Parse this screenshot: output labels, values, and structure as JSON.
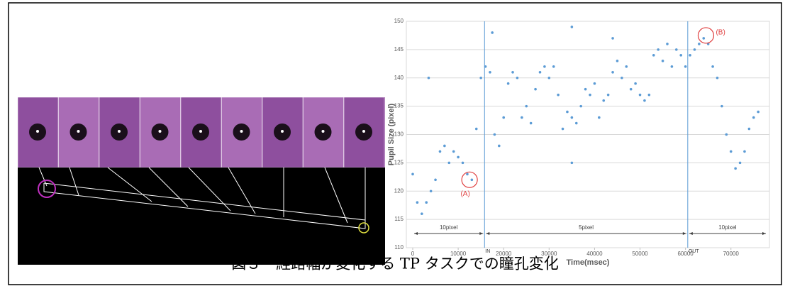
{
  "chart_data": {
    "type": "scatter",
    "y_label": "Pupil Size (pixel)",
    "x_label": "Time(msec)",
    "color": "#5b9bd5",
    "x": [
      0,
      1000,
      2000,
      3000,
      4000,
      5000,
      6000,
      7000,
      8000,
      9000,
      10000,
      11000,
      12000,
      13000,
      14000,
      15000,
      16000,
      17000,
      18000,
      19000,
      20000,
      21000,
      22000,
      23000,
      24000,
      25000,
      26000,
      27000,
      28000,
      29000,
      30000,
      31000,
      32000,
      33000,
      34000,
      35000,
      36000,
      37000,
      38000,
      39000,
      40000,
      41000,
      42000,
      43000,
      44000,
      45000,
      46000,
      47000,
      48000,
      49000,
      50000,
      51000,
      52000,
      53000,
      54000,
      55000,
      56000,
      57000,
      58000,
      59000,
      60000,
      61000,
      62000,
      63000,
      64000,
      65000,
      66000,
      67000,
      68000,
      69000,
      70000,
      71000,
      72000,
      73000,
      74000,
      75000,
      76000,
      3500,
      17500,
      35000,
      35000,
      44000
    ],
    "values": [
      123,
      118,
      116,
      118,
      120,
      122,
      127,
      128,
      125,
      127,
      126,
      125,
      123,
      122,
      131,
      140,
      142,
      141,
      130,
      128,
      133,
      139,
      141,
      140,
      133,
      135,
      132,
      138,
      141,
      142,
      140,
      142,
      137,
      131,
      134,
      133,
      132,
      135,
      138,
      137,
      139,
      133,
      136,
      137,
      141,
      143,
      140,
      142,
      138,
      139,
      137,
      136,
      137,
      144,
      145,
      143,
      146,
      142,
      145,
      144,
      142,
      144,
      145,
      146,
      147,
      146,
      142,
      140,
      135,
      130,
      127,
      124,
      125,
      127,
      131,
      133,
      134,
      140,
      148,
      149,
      125,
      147
    ],
    "xlim": [
      0,
      78000
    ],
    "ylim": [
      110,
      150
    ],
    "xticks": [
      0,
      10000,
      20000,
      30000,
      40000,
      50000,
      60000,
      70000
    ],
    "yticks": [
      110,
      115,
      120,
      125,
      130,
      135,
      140,
      145,
      150
    ],
    "grid": true,
    "markers": [
      {
        "label": "IN",
        "x": 15800
      },
      {
        "label": "OUT",
        "x": 60500
      }
    ],
    "segments": [
      {
        "label": "10pixel",
        "start": 0,
        "end": 15800
      },
      {
        "label": "5pixel",
        "start": 15800,
        "end": 60500
      },
      {
        "label": "10pixel",
        "start": 60500,
        "end": 78000
      }
    ],
    "highlights": [
      {
        "label": "(A)",
        "x": 12500,
        "y": 122
      },
      {
        "label": "(B)",
        "x": 64500,
        "y": 147.5
      }
    ]
  },
  "caption": "図３　経路幅が変化する TP タスクでの瞳孔変化"
}
